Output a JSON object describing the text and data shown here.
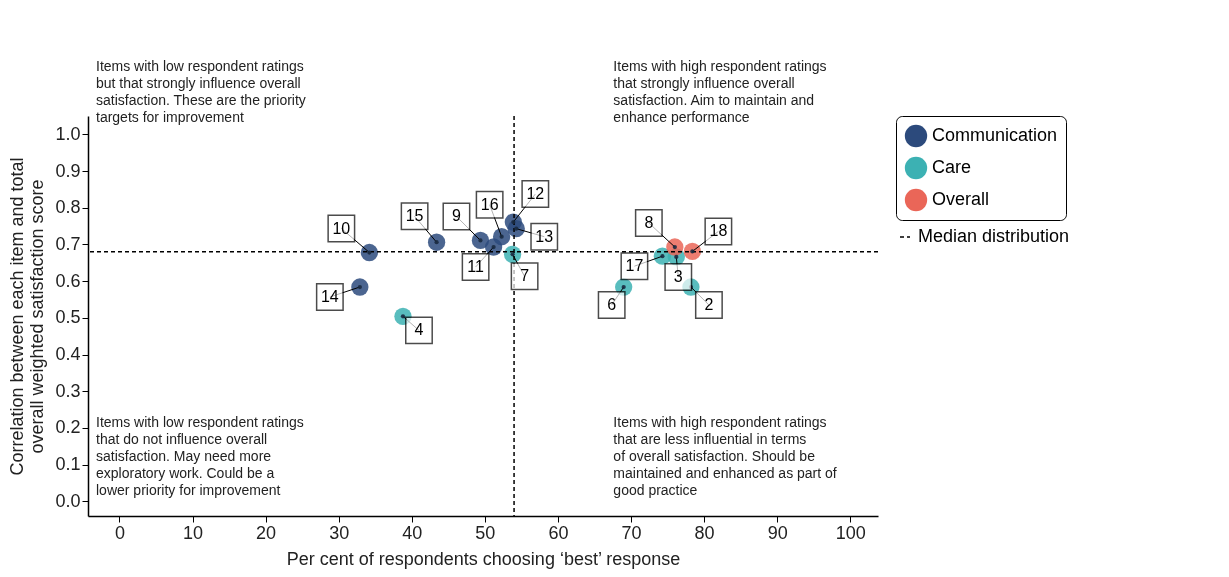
{
  "chart_data": {
    "type": "scatter",
    "xlabel": "Per cent of respondents choosing ‘best’ response",
    "ylabel": "Correlation between each item and total\noverall weighted satisfaction score",
    "xlim": [
      -4.3,
      103.8
    ],
    "ylim": [
      -0.04,
      1.05
    ],
    "xticks": [
      0,
      10,
      20,
      30,
      40,
      50,
      60,
      70,
      80,
      90,
      100
    ],
    "yticks": [
      {
        "value": 0,
        "label": "0.0"
      },
      {
        "value": 0.1,
        "label": "0.1"
      },
      {
        "value": 0.2,
        "label": "0.2"
      },
      {
        "value": 0.3,
        "label": "0.3"
      },
      {
        "value": 0.4,
        "label": "0.4"
      },
      {
        "value": 0.5,
        "label": "0.5"
      },
      {
        "value": 0.6,
        "label": "0.6"
      },
      {
        "value": 0.7,
        "label": "0.7"
      },
      {
        "value": 0.8,
        "label": "0.8"
      },
      {
        "value": 0.9,
        "label": "0.9"
      },
      {
        "value": 1,
        "label": "1.0"
      }
    ],
    "grid": false,
    "legend": "right",
    "marker": "circle",
    "series": [
      {
        "name": "Communication",
        "color": "#2c4a7c",
        "x": [
          34.2,
          32.9,
          43.4,
          49.4,
          52.3,
          51.2,
          53.9,
          54.3
        ],
        "values": [
          0.678,
          0.584,
          0.706,
          0.711,
          0.721,
          0.693,
          0.761,
          0.743
        ]
      },
      {
        "name": "Care",
        "color": "#3cb1b3",
        "x": [
          38.8,
          53.8,
          69.0,
          74.3,
          76.2,
          78.2
        ],
        "values": [
          0.504,
          0.673,
          0.584,
          0.668,
          0.666,
          0.584
        ]
      },
      {
        "name": "Overall",
        "color": "#ea6658",
        "x": [
          76.0,
          78.4
        ],
        "values": [
          0.693,
          0.681
        ]
      }
    ],
    "ref_lines": [
      {
        "axis": "y",
        "value": 0.68,
        "label": "Median distribution",
        "line_style": "dashed"
      },
      {
        "axis": "x",
        "value": 54,
        "line_style": "dashed"
      }
    ],
    "annotations": [
      "Items with low respondent ratings\nbut that strongly influence overall\nsatisfaction. These are the priority\ntargets for improvement",
      "Items with high respondent ratings\nthat strongly influence overall\nsatisfaction. Aim to maintain and\nenhance performance",
      "Items with low respondent ratings\nthat do not influence overall\nsatisfaction. May need more\nexploratory work. Could be a\nlower priority for improvement",
      "Items with high respondent ratings\nthat are less influential in terms\nof overall satisfaction. Should be\nmaintained and enhanced as part of\ngood practice",
      {
        "text": "10",
        "x": 34.2,
        "y": 0.678
      },
      {
        "text": "14",
        "x": 32.9,
        "y": 0.584
      },
      {
        "text": "15",
        "x": 43.4,
        "y": 0.706
      },
      {
        "text": "9",
        "x": 49.4,
        "y": 0.711
      },
      {
        "text": "16",
        "x": 52.3,
        "y": 0.721
      },
      {
        "text": "11",
        "x": 51.2,
        "y": 0.693
      },
      {
        "text": "12",
        "x": 53.9,
        "y": 0.761
      },
      {
        "text": "13",
        "x": 54.3,
        "y": 0.743
      },
      {
        "text": "4",
        "x": 38.8,
        "y": 0.504
      },
      {
        "text": "7",
        "x": 53.8,
        "y": 0.673
      },
      {
        "text": "6",
        "x": 69.0,
        "y": 0.584
      },
      {
        "text": "17",
        "x": 74.3,
        "y": 0.668
      },
      {
        "text": "3",
        "x": 76.2,
        "y": 0.666
      },
      {
        "text": "2",
        "x": 78.2,
        "y": 0.584
      },
      {
        "text": "8",
        "x": 76.0,
        "y": 0.693
      },
      {
        "text": "18",
        "x": 78.4,
        "y": 0.681
      }
    ]
  }
}
